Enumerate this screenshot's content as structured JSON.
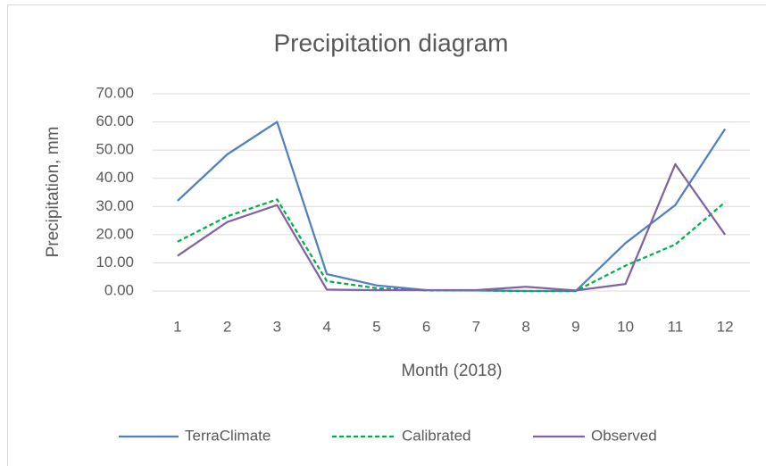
{
  "chart_data": {
    "type": "line",
    "title": "Precipitation diagram",
    "x_label": "Month (2018)",
    "y_label": "Precipitation, mm",
    "categories": [
      "1",
      "2",
      "3",
      "4",
      "5",
      "6",
      "7",
      "8",
      "9",
      "10",
      "11",
      "12"
    ],
    "series": [
      {
        "name": "TerraClimate",
        "color": "#4f81bd",
        "line_style": "solid",
        "values": [
          32,
          48.5,
          60,
          6,
          2,
          0.3,
          0.2,
          0,
          0,
          17,
          30.5,
          57.5
        ]
      },
      {
        "name": "Calibrated",
        "color": "#00b050",
        "line_style": "dashed",
        "values": [
          17.5,
          26.5,
          32.5,
          3.5,
          1,
          0.2,
          0.2,
          0,
          0,
          9,
          16.5,
          31.5
        ]
      },
      {
        "name": "Observed",
        "color": "#8064a2",
        "line_style": "solid",
        "values": [
          12.5,
          24.5,
          30.5,
          0.5,
          0.3,
          0.3,
          0.3,
          1.5,
          0.2,
          2.5,
          45,
          20
        ]
      }
    ],
    "ylim": [
      0,
      70
    ],
    "yticks": [
      {
        "value": 0,
        "label": "0.00"
      },
      {
        "value": 10,
        "label": "10.00"
      },
      {
        "value": 20,
        "label": "20.00"
      },
      {
        "value": 30,
        "label": "30.00"
      },
      {
        "value": 40,
        "label": "40.00"
      },
      {
        "value": 50,
        "label": "50.00"
      },
      {
        "value": 60,
        "label": "60.00"
      },
      {
        "value": 70,
        "label": "70.00"
      }
    ],
    "grid": true,
    "legend": "bottom"
  }
}
